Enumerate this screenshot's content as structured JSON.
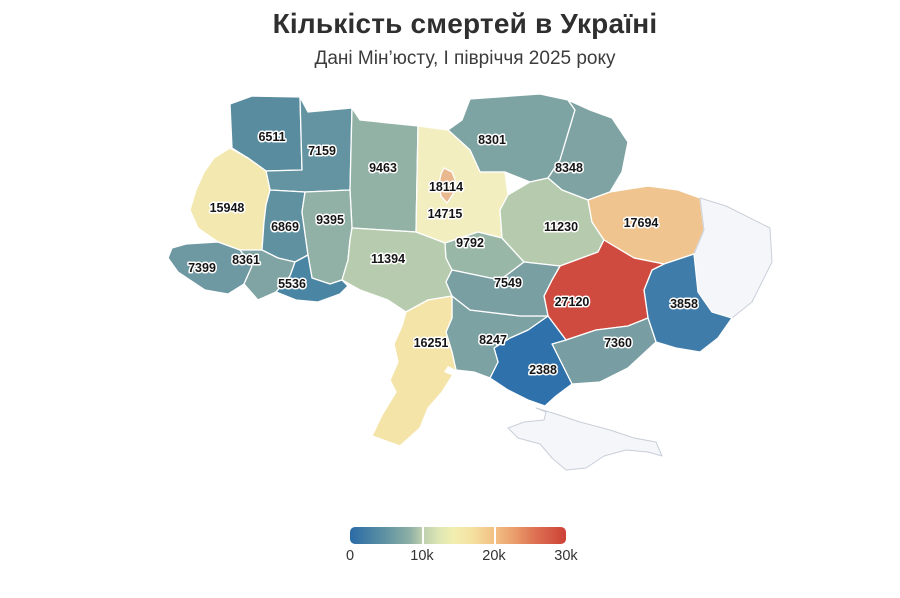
{
  "title": "Кількість смертей в Україні",
  "subtitle": "Дані Мін’юсту, І півріччя 2025 року",
  "chart_data": {
    "type": "heatmap",
    "subtype": "choropleth-map-ukraine",
    "value_meaning": "number of deaths, H1 2025",
    "regions": [
      {
        "key": "volyn",
        "name": "Волинська",
        "value": 6511,
        "color": "#5a8ca0"
      },
      {
        "key": "rivne",
        "name": "Рівненська",
        "value": 7159,
        "color": "#6494a2"
      },
      {
        "key": "zhytomyr",
        "name": "Житомирська",
        "value": 9463,
        "color": "#93b2a6"
      },
      {
        "key": "chernihiv",
        "name": "Чернігівська",
        "value": 8301,
        "color": "#7ea3a3"
      },
      {
        "key": "sumy",
        "name": "Сумська",
        "value": 8348,
        "color": "#7fa3a3"
      },
      {
        "key": "kyiv_oblast",
        "name": "Київська",
        "value": 14715,
        "color": "#f2eec0"
      },
      {
        "key": "kyiv_city",
        "name": "м. Київ",
        "value": 18114,
        "color": "#e9b88e"
      },
      {
        "key": "lviv",
        "name": "Львівська",
        "value": 15948,
        "color": "#f3e8b0"
      },
      {
        "key": "ternopil",
        "name": "Тернопільська",
        "value": 6869,
        "color": "#6091a1"
      },
      {
        "key": "khmelnytskyi",
        "name": "Хмельницька",
        "value": 9395,
        "color": "#92b1a6"
      },
      {
        "key": "vinnytsia",
        "name": "Вінницька",
        "value": 11394,
        "color": "#b7ccae"
      },
      {
        "key": "cherkasy",
        "name": "Черкаська",
        "value": 9792,
        "color": "#99b7a7"
      },
      {
        "key": "poltava",
        "name": "Полтавська",
        "value": 11230,
        "color": "#b6cbae"
      },
      {
        "key": "kharkiv",
        "name": "Харківська",
        "value": 17694,
        "color": "#f0c48e"
      },
      {
        "key": "luhansk",
        "name": "Луганська",
        "value": null,
        "color": "#f4f6f9",
        "no_data": true
      },
      {
        "key": "donetsk",
        "name": "Донецька",
        "value": 3858,
        "color": "#3f7ca9"
      },
      {
        "key": "dnipropetrovsk",
        "name": "Дніпропетровська",
        "value": 27120,
        "color": "#cf4b3f"
      },
      {
        "key": "zaporizhzhia",
        "name": "Запорізька",
        "value": 7360,
        "color": "#789da2"
      },
      {
        "key": "kherson",
        "name": "Херсонська",
        "value": 2388,
        "color": "#2e71ab"
      },
      {
        "key": "mykolaiv",
        "name": "Миколаївська",
        "value": 8247,
        "color": "#7da2a3"
      },
      {
        "key": "kirovohrad",
        "name": "Кіровоградська",
        "value": 7549,
        "color": "#7a9fa3"
      },
      {
        "key": "odesa",
        "name": "Одеська",
        "value": 16251,
        "color": "#f4e4a8"
      },
      {
        "key": "zakarpattia",
        "name": "Закарпатська",
        "value": 7399,
        "color": "#6e98a2"
      },
      {
        "key": "ivano_frankivsk",
        "name": "Івано-Франківська",
        "value": 8361,
        "color": "#80a4a3"
      },
      {
        "key": "chernivtsi",
        "name": "Чернівецька",
        "value": 5536,
        "color": "#4a85a3"
      },
      {
        "key": "crimea",
        "name": "АР Крим",
        "value": null,
        "color": "#f4f6f9",
        "no_data": true
      }
    ],
    "legend": {
      "min": 0,
      "max": 30000,
      "tick_labels": [
        "0",
        "10k",
        "20k",
        "30k"
      ],
      "gradient_stops": [
        "#2b6ba7",
        "#b9cdad",
        "#f2eeb0",
        "#f2bf84",
        "#cc4237"
      ],
      "no_data_color": "#f4f6f9"
    }
  }
}
